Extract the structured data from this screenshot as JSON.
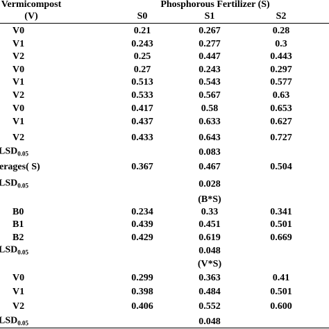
{
  "header": {
    "row_label": "Vermicompost",
    "row_label_sub": "(V)",
    "group": "Phosphorous Fertilizer (S)",
    "columns": [
      "S0",
      "S1",
      "S2"
    ]
  },
  "rows": [
    {
      "label": "V0",
      "cells": [
        "0.21",
        "0.267",
        "0.28"
      ]
    },
    {
      "label": "V1",
      "cells": [
        "0.243",
        "0.277",
        "0.3"
      ]
    },
    {
      "label": "V2",
      "cells": [
        "0.25",
        "0.447",
        "0.443"
      ]
    },
    {
      "label": "V0",
      "cells": [
        "0.27",
        "0.243",
        "0.297"
      ]
    },
    {
      "label": "V1",
      "cells": [
        "0.513",
        "0.543",
        "0.577"
      ]
    },
    {
      "label": "V2",
      "cells": [
        "0.533",
        "0.567",
        "0.63"
      ]
    },
    {
      "label": "V0",
      "cells": [
        "0.417",
        "0.58",
        "0.653"
      ]
    },
    {
      "label": "V1",
      "cells": [
        "0.437",
        "0.633",
        "0.627"
      ]
    },
    {
      "label": "V2",
      "cells": [
        "0.433",
        "0.643",
        "0.727"
      ]
    },
    {
      "label": "LSD",
      "sub": "0.05",
      "center": "0.083"
    },
    {
      "label": "erages( S)",
      "cells": [
        "0.367",
        "0.467",
        "0.504"
      ]
    },
    {
      "label": "LSD",
      "sub": "0.05",
      "center": "0.028"
    },
    {
      "center": "(B*S)"
    },
    {
      "label": "B0",
      "cells": [
        "0.234",
        "0.33",
        "0.341"
      ]
    },
    {
      "label": "B1",
      "cells": [
        "0.439",
        "0.451",
        "0.501"
      ]
    },
    {
      "label": "B2",
      "cells": [
        "0.429",
        "0.619",
        "0.669"
      ]
    },
    {
      "label": "LSD",
      "sub": "0.05",
      "center": "0.048"
    },
    {
      "center": "(V*S)"
    },
    {
      "label": "V0",
      "cells": [
        "0.299",
        "0.363",
        "0.41"
      ]
    },
    {
      "label": "V1",
      "cells": [
        "0.398",
        "0.484",
        "0.501"
      ]
    },
    {
      "label": "V2",
      "cells": [
        "0.406",
        "0.552",
        "0.600"
      ]
    },
    {
      "label": "LSD",
      "sub": "0.05",
      "center": "0.048"
    }
  ]
}
